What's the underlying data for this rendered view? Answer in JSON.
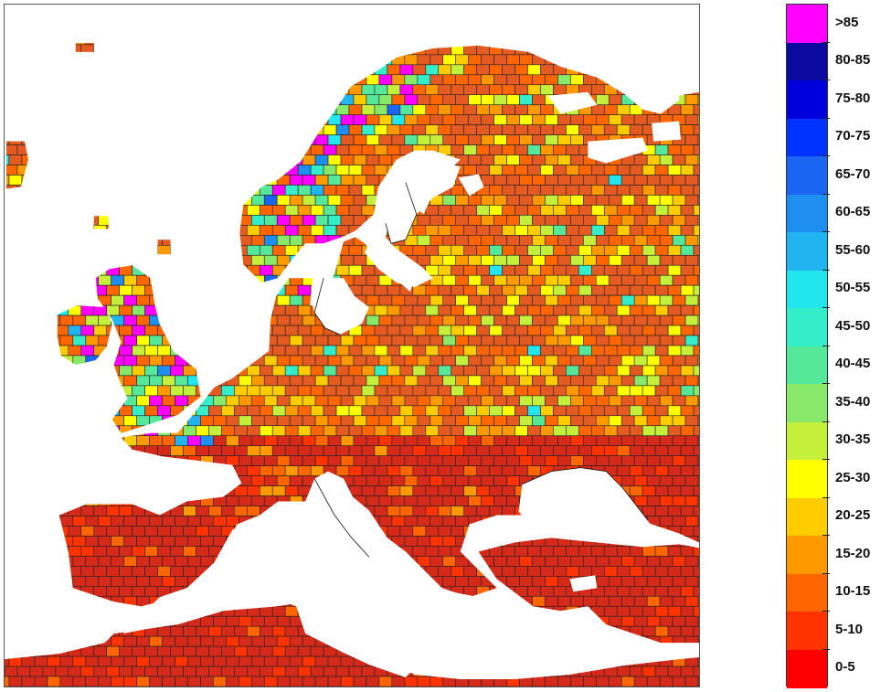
{
  "legend": {
    "classes": [
      {
        "label": ">85",
        "color": "#ff00ff"
      },
      {
        "label": "80-85",
        "color": "#0a0aa0"
      },
      {
        "label": "75-80",
        "color": "#0000dc"
      },
      {
        "label": "70-75",
        "color": "#0033ff"
      },
      {
        "label": "65-70",
        "color": "#1a66f2"
      },
      {
        "label": "60-65",
        "color": "#1e8ff0"
      },
      {
        "label": "55-60",
        "color": "#22b4f0"
      },
      {
        "label": "50-55",
        "color": "#22e6ee"
      },
      {
        "label": "45-50",
        "color": "#33eec8"
      },
      {
        "label": "40-45",
        "color": "#55e89a"
      },
      {
        "label": "35-40",
        "color": "#88e86a"
      },
      {
        "label": "30-35",
        "color": "#c4f03c"
      },
      {
        "label": "25-30",
        "color": "#ffff00"
      },
      {
        "label": "20-25",
        "color": "#ffcc00"
      },
      {
        "label": "15-20",
        "color": "#ff9900"
      },
      {
        "label": "10-15",
        "color": "#ff6600"
      },
      {
        "label": "5-10",
        "color": "#ff3300"
      },
      {
        "label": "0-5",
        "color": "#ff0000"
      }
    ]
  },
  "map": {
    "region": "Europe",
    "cell_outline_color": "#202020",
    "land_base_color": "#d52a1a",
    "north_tint_color": "#e45a20",
    "high_value_regions": [
      "Norway west coast",
      "Ireland",
      "Scotland",
      "Wales"
    ],
    "sea_color": "#ffffff"
  }
}
